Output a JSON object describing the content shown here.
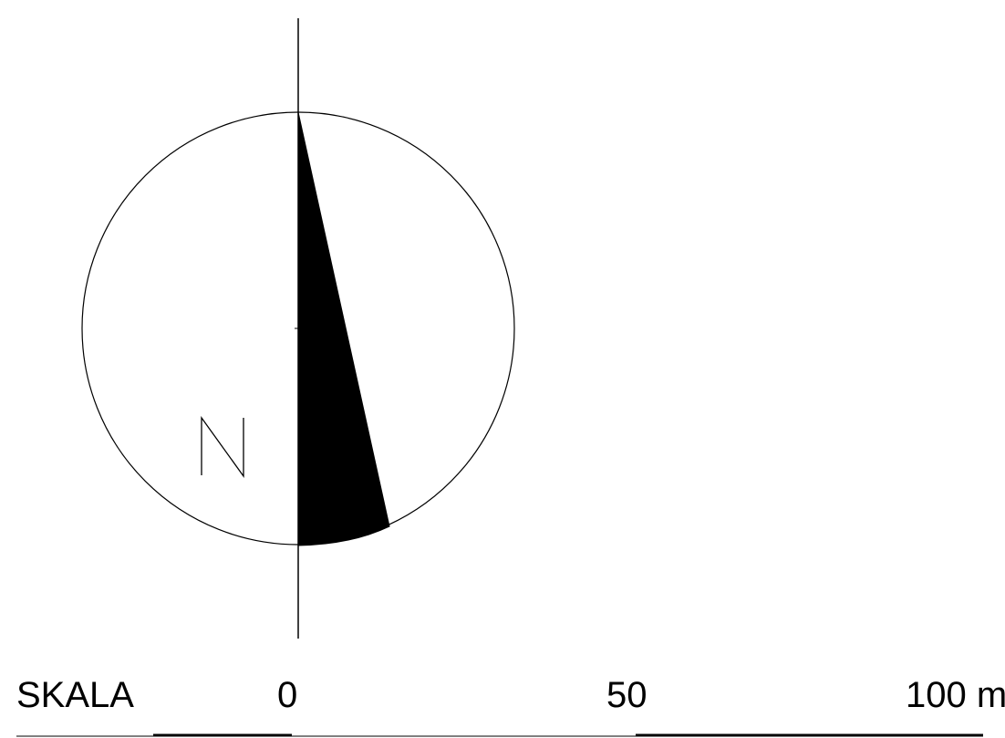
{
  "north_arrow": {
    "letter": "N",
    "icon": "north-arrow-icon"
  },
  "scale_bar": {
    "label": "SKALA",
    "ticks": [
      {
        "value": 0,
        "text": "0"
      },
      {
        "value": 50,
        "text": "50"
      },
      {
        "value": 100,
        "text": "100 m"
      }
    ],
    "unit": "m",
    "max": 100
  },
  "colors": {
    "ink": "#000000",
    "background": "#ffffff"
  }
}
